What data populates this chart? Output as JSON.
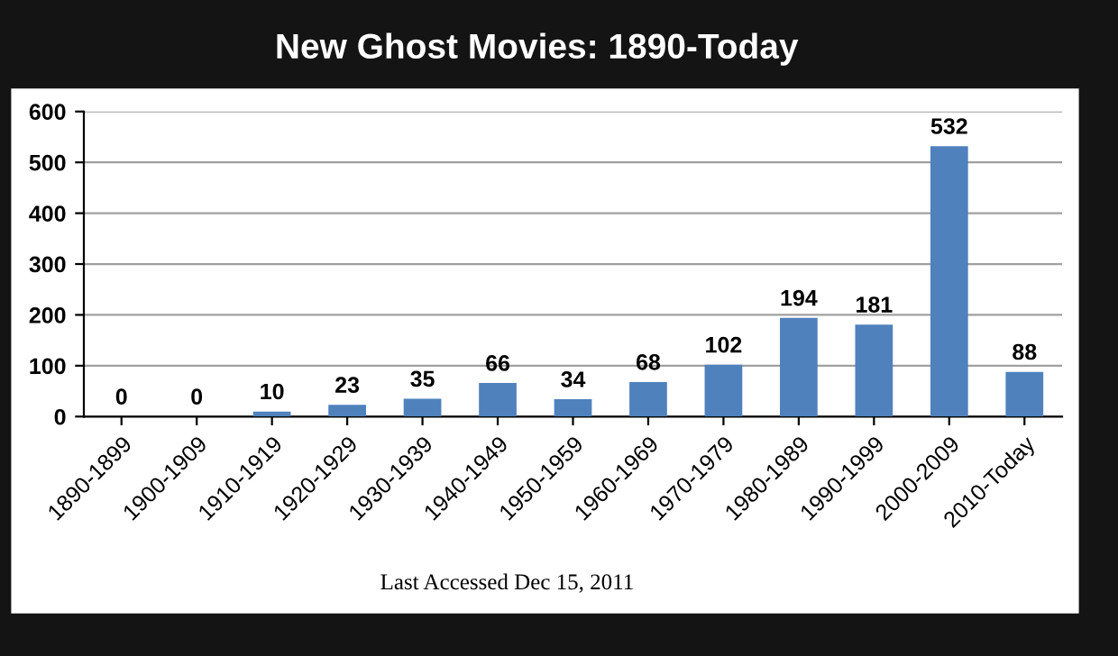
{
  "chart_data": {
    "type": "bar",
    "title": "New Ghost Movies: 1890-Today",
    "categories": [
      "1890-1899",
      "1900-1909",
      "1910-1919",
      "1920-1929",
      "1930-1939",
      "1940-1949",
      "1950-1959",
      "1960-1969",
      "1970-1979",
      "1980-1989",
      "1990-1999",
      "2000-2009",
      "2010-Today"
    ],
    "values": [
      0,
      0,
      10,
      23,
      35,
      66,
      34,
      68,
      102,
      194,
      181,
      532,
      88
    ],
    "color": "#4f81bd",
    "ylim": [
      0,
      600
    ],
    "yticks": [
      0,
      100,
      200,
      300,
      400,
      500,
      600
    ],
    "grid": "y",
    "data_labels": true,
    "annotations": [
      "Last Accessed Dec 15, 2011"
    ]
  }
}
